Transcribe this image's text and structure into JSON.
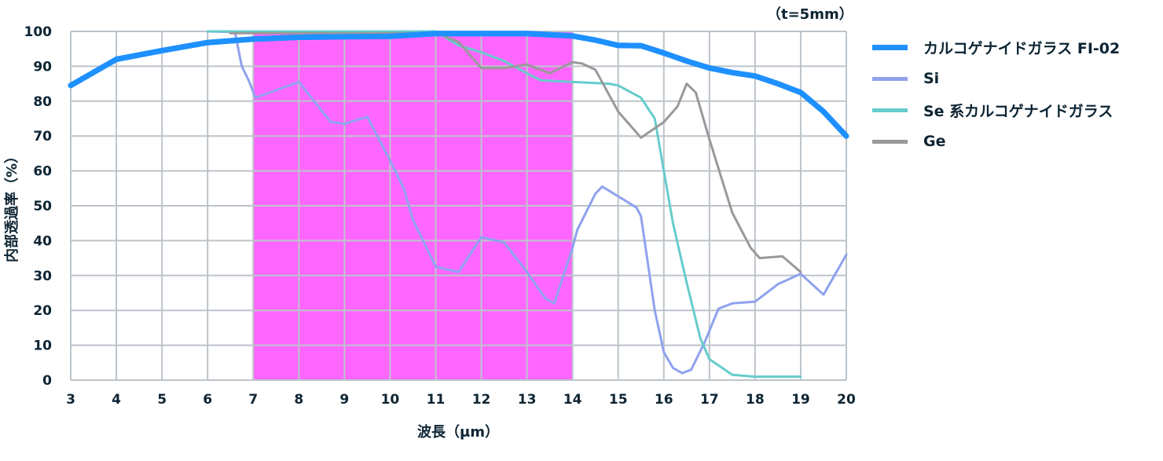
{
  "chart_data": {
    "type": "line",
    "title": "",
    "note": "（t=5mm）",
    "xlabel": "波長（μm）",
    "ylabel": "内部透過率（%）",
    "xlim": [
      3,
      20
    ],
    "ylim": [
      0,
      100
    ],
    "xticks": [
      3,
      4,
      5,
      6,
      7,
      8,
      9,
      10,
      11,
      12,
      13,
      14,
      15,
      16,
      17,
      18,
      19,
      20
    ],
    "yticks": [
      0,
      10,
      20,
      30,
      40,
      50,
      60,
      70,
      80,
      90,
      100
    ],
    "grid": true,
    "legend_position": "right",
    "highlight_band": {
      "x_start": 7,
      "x_end": 14,
      "color": "#ff66ff"
    },
    "series": [
      {
        "name": "カルコゲナイドガラス FI-02",
        "color": "#1e90ff",
        "width": 7,
        "points": [
          [
            3,
            84.5
          ],
          [
            4,
            92
          ],
          [
            5,
            94.5
          ],
          [
            6,
            96.8
          ],
          [
            7,
            97.8
          ],
          [
            8,
            98.3
          ],
          [
            9,
            98.5
          ],
          [
            10,
            98.6
          ],
          [
            11,
            99.4
          ],
          [
            12,
            99.4
          ],
          [
            13,
            99.4
          ],
          [
            14,
            98.7
          ],
          [
            14.5,
            97.5
          ],
          [
            15,
            96
          ],
          [
            15.5,
            95.9
          ],
          [
            16,
            93.8
          ],
          [
            16.5,
            91.5
          ],
          [
            17,
            89.5
          ],
          [
            17.5,
            88.2
          ],
          [
            18,
            87.2
          ],
          [
            18.5,
            85
          ],
          [
            19,
            82.5
          ],
          [
            19.5,
            77
          ],
          [
            20,
            70
          ]
        ]
      },
      {
        "name": "Si",
        "color": "#8fa2ee",
        "width": 3,
        "points": [
          [
            6,
            100
          ],
          [
            6.6,
            99.8
          ],
          [
            6.75,
            90
          ],
          [
            6.9,
            86
          ],
          [
            7.05,
            81
          ],
          [
            8,
            85.5
          ],
          [
            8.7,
            74
          ],
          [
            9,
            73.5
          ],
          [
            9.5,
            75.5
          ],
          [
            10,
            63
          ],
          [
            10.3,
            55
          ],
          [
            10.5,
            46
          ],
          [
            11,
            32.5
          ],
          [
            11.5,
            31
          ],
          [
            12,
            41
          ],
          [
            12.5,
            39.5
          ],
          [
            13,
            31
          ],
          [
            13.4,
            23.5
          ],
          [
            13.6,
            22
          ],
          [
            14,
            38
          ],
          [
            14.1,
            43
          ],
          [
            14.5,
            53.5
          ],
          [
            14.65,
            55.5
          ],
          [
            15.4,
            49.5
          ],
          [
            15.5,
            47
          ],
          [
            15.8,
            20
          ],
          [
            16,
            8
          ],
          [
            16.2,
            3.5
          ],
          [
            16.4,
            2
          ],
          [
            16.6,
            3
          ],
          [
            16.9,
            11
          ],
          [
            17.2,
            20.5
          ],
          [
            17.5,
            22
          ],
          [
            18,
            22.5
          ],
          [
            18.5,
            27.5
          ],
          [
            19,
            30.5
          ],
          [
            19.5,
            24.5
          ],
          [
            20,
            36
          ]
        ]
      },
      {
        "name": "Se 系カルコゲナイドガラス",
        "color": "#66cccc",
        "width": 3,
        "points": [
          [
            6,
            100
          ],
          [
            11,
            100
          ],
          [
            11.5,
            96
          ],
          [
            12,
            94
          ],
          [
            12.5,
            91.5
          ],
          [
            13,
            88
          ],
          [
            13.3,
            86
          ],
          [
            14,
            85.5
          ],
          [
            14.8,
            85
          ],
          [
            15,
            84.5
          ],
          [
            15.5,
            81
          ],
          [
            15.8,
            75
          ],
          [
            16,
            60
          ],
          [
            16.2,
            45
          ],
          [
            16.5,
            28
          ],
          [
            16.8,
            12
          ],
          [
            17,
            6
          ],
          [
            17.5,
            1.5
          ],
          [
            18,
            1
          ],
          [
            19,
            1
          ]
        ]
      },
      {
        "name": "Ge",
        "color": "#999999",
        "width": 3,
        "points": [
          [
            6.5,
            99.5
          ],
          [
            11,
            99.5
          ],
          [
            11.5,
            97
          ],
          [
            12,
            89.5
          ],
          [
            12.5,
            89.5
          ],
          [
            13,
            90.5
          ],
          [
            13.5,
            88
          ],
          [
            14,
            91.2
          ],
          [
            14.2,
            90.8
          ],
          [
            14.5,
            89
          ],
          [
            15,
            77
          ],
          [
            15.5,
            69.5
          ],
          [
            16,
            74
          ],
          [
            16.3,
            78.5
          ],
          [
            16.5,
            85
          ],
          [
            16.7,
            82.5
          ],
          [
            17,
            69
          ],
          [
            17.5,
            48
          ],
          [
            17.9,
            38
          ],
          [
            18.1,
            35
          ],
          [
            18.6,
            35.5
          ],
          [
            19,
            31
          ]
        ]
      }
    ]
  },
  "legend": {
    "items": [
      {
        "label": "カルコゲナイドガラス FI-02",
        "color": "#1e90ff"
      },
      {
        "label": "Si",
        "color": "#8fa2ee"
      },
      {
        "label": "Se 系カルコゲナイドガラス",
        "color": "#66cccc"
      },
      {
        "label": "Ge",
        "color": "#999999"
      }
    ]
  },
  "colors": {
    "grid": "#bcc4cb",
    "text": "#0d2433",
    "band": "#ff66ff"
  }
}
